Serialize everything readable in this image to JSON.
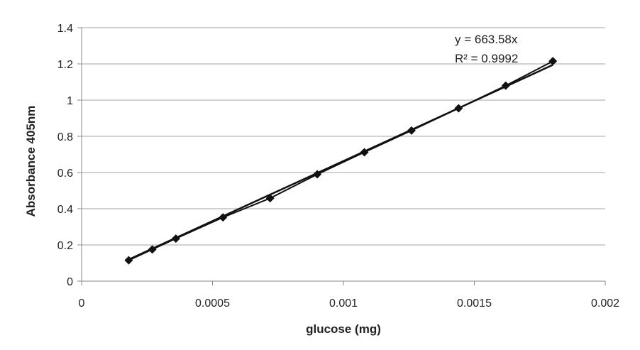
{
  "chart_data": {
    "type": "scatter",
    "title": "",
    "xlabel": "glucose (mg)",
    "ylabel": "Absorbance 405nm",
    "xlim": [
      0,
      0.002
    ],
    "ylim": [
      0,
      1.4
    ],
    "x_ticks": [
      "0",
      "0.0005",
      "0.001",
      "0.0015",
      "0.002"
    ],
    "y_ticks": [
      "0",
      "0.2",
      "0.4",
      "0.6",
      "0.8",
      "1",
      "1.2",
      "1.4"
    ],
    "grid": "horizontal",
    "series": [
      {
        "marker": "diamond",
        "connected": true,
        "x": [
          0.00018,
          0.00027,
          0.00036,
          0.00054,
          0.00072,
          0.0009,
          0.00108,
          0.00126,
          0.00144,
          0.00162,
          0.0018
        ],
        "y": [
          0.115,
          0.175,
          0.235,
          0.352,
          0.458,
          0.59,
          0.712,
          0.832,
          0.955,
          1.08,
          1.215
        ]
      }
    ],
    "trendline": {
      "type": "linear",
      "slope": 663.58,
      "intercept": 0,
      "x_range": [
        0.00018,
        0.0018
      ],
      "equation": "y = 663.58x",
      "r_squared": "R² = 0.9992"
    },
    "colors": {
      "series": "#111111",
      "grid": "#a6a6a6",
      "text": "#222222"
    }
  }
}
